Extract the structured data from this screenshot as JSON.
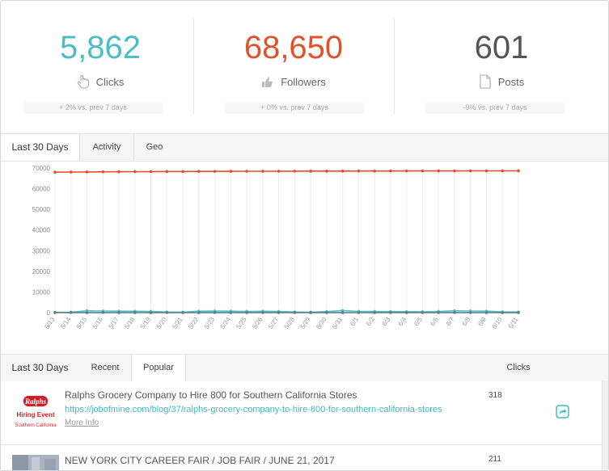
{
  "stats": [
    {
      "value": "5,862",
      "label": "Clicks",
      "delta": "+ 2% vs. prev 7 days",
      "color": "#4dbdc4",
      "icon": "hand-pointer-icon"
    },
    {
      "value": "68,650",
      "label": "Followers",
      "delta": "+ 0% vs. prev 7 days",
      "color": "#e0532a",
      "icon": "thumbs-up-icon"
    },
    {
      "value": "601",
      "label": "Posts",
      "delta": "-9% vs. prev 7 days",
      "color": "#555555",
      "icon": "document-icon"
    }
  ],
  "chart_tabs": [
    "Last 30 Days",
    "Activity",
    "Geo"
  ],
  "chart_data": {
    "type": "line",
    "ylim": [
      0,
      70000
    ],
    "yticks": [
      "0",
      "10000",
      "20000",
      "30000",
      "40000",
      "50000",
      "60000",
      "70000"
    ],
    "x": [
      "5/13",
      "5/14",
      "5/15",
      "5/16",
      "5/17",
      "5/18",
      "5/19",
      "5/20",
      "5/21",
      "5/22",
      "5/23",
      "5/24",
      "5/25",
      "5/26",
      "5/27",
      "5/28",
      "5/29",
      "5/30",
      "5/31",
      "6/1",
      "6/2",
      "6/3",
      "6/4",
      "6/5",
      "6/6",
      "6/7",
      "6/8",
      "6/9",
      "6/10",
      "6/11"
    ],
    "series": [
      {
        "color": "#e0532a",
        "values": [
          68000,
          68050,
          68100,
          68150,
          68200,
          68250,
          68280,
          68300,
          68320,
          68350,
          68380,
          68400,
          68420,
          68440,
          68460,
          68480,
          68500,
          68510,
          68520,
          68540,
          68550,
          68560,
          68580,
          68590,
          68600,
          68610,
          68620,
          68630,
          68640,
          68650
        ]
      },
      {
        "color": "#4dbdc4",
        "values": [
          200,
          250,
          900,
          800,
          700,
          650,
          600,
          300,
          250,
          700,
          750,
          700,
          600,
          650,
          550,
          300,
          250,
          500,
          1000,
          600,
          550,
          500,
          450,
          400,
          600,
          900,
          800,
          700,
          400,
          300
        ]
      },
      {
        "color": "#5f7f87",
        "values": [
          30,
          25,
          20,
          25,
          20,
          15,
          20,
          25,
          15,
          20,
          25,
          20,
          30,
          25,
          20,
          15,
          20,
          25,
          20,
          15,
          20,
          25,
          20,
          15,
          20,
          25,
          20,
          15,
          20,
          18
        ]
      }
    ]
  },
  "list_tabs": [
    "Last 30 Days",
    "Recent",
    "Popular"
  ],
  "list_header": {
    "clicks": "Clicks"
  },
  "posts": [
    {
      "title": "Ralphs Grocery Company to Hire 800 for Southern California Stores",
      "url": "https://jobofmine.com/blog/37/ralphs-grocery-company-to-hire-800-for-southern-california-stores",
      "more": "More Info",
      "clicks": "318",
      "thumb": {
        "brand": "Ralphs",
        "line1": "Hiring Event",
        "line2": "Southern California"
      }
    },
    {
      "title": "NEW YORK CITY CAREER FAIR / JOB FAIR / JUNE 21, 2017",
      "clicks": "211"
    }
  ]
}
